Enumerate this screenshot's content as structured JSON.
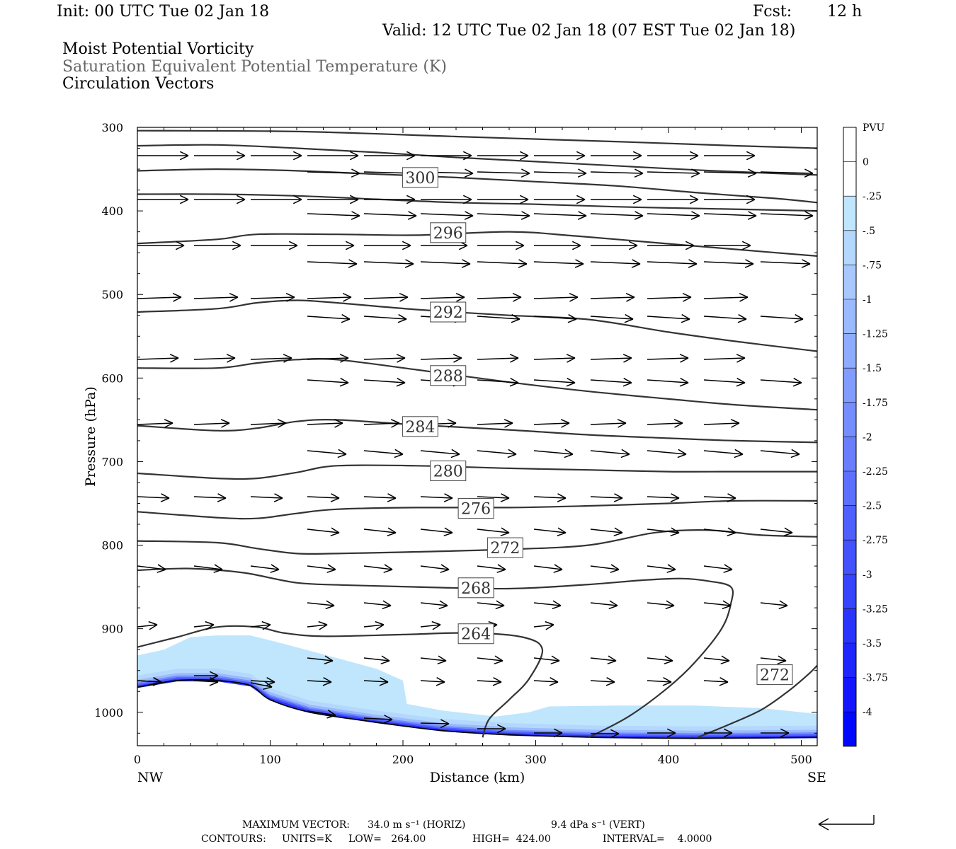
{
  "header": {
    "init": "Init: 00 UTC Tue 02 Jan 18",
    "fcst_label": "Fcst:",
    "fcst_value": "12 h",
    "valid": "Valid: 12 UTC Tue 02 Jan 18 (07 EST Tue 02 Jan 18)",
    "field1": "Moist Potential Vorticity",
    "field2": "Saturation Equivalent Potential Temperature (K)",
    "field3": "Circulation Vectors"
  },
  "chart_data": {
    "type": "cross-section",
    "xlabel": "Distance (km)",
    "ylabel": "Pressure (hPa)",
    "xlim": [
      0,
      512
    ],
    "ylim": [
      1040,
      300
    ],
    "x_ticks": [
      0,
      100,
      200,
      300,
      400,
      500
    ],
    "y_ticks": [
      300,
      400,
      500,
      600,
      700,
      800,
      900,
      1000
    ],
    "x_end_labels": {
      "left": "NW",
      "right": "SE"
    },
    "colorbar": {
      "title": "PVU",
      "labels": [
        "0",
        "-.25",
        "-.5",
        "-.75",
        "-1",
        "-1.25",
        "-1.5",
        "-1.75",
        "-2",
        "-2.25",
        "-2.5",
        "-2.75",
        "-3",
        "-3.25",
        "-3.5",
        "-3.75",
        "-4"
      ],
      "colors": [
        "#ffffff",
        "#bfe6fd",
        "#b4d8fd",
        "#a8c8fd",
        "#9bbafd",
        "#8fabfd",
        "#829cfd",
        "#768dfd",
        "#6a7efd",
        "#5d6ffd",
        "#5060fd",
        "#4452fd",
        "#3843fd",
        "#2b34fd",
        "#1f25fd",
        "#1316fd",
        "#0007fd"
      ]
    },
    "contours": [
      {
        "label": "300",
        "label_at": [
          213,
          360
        ],
        "points": [
          [
            0,
            352
          ],
          [
            60,
            350
          ],
          [
            120,
            352
          ],
          [
            180,
            356
          ],
          [
            240,
            360
          ],
          [
            300,
            365
          ],
          [
            360,
            370
          ],
          [
            420,
            378
          ],
          [
            480,
            385
          ],
          [
            512,
            390
          ]
        ]
      },
      {
        "label": "296",
        "label_at": [
          234,
          426
        ],
        "points": [
          [
            0,
            439
          ],
          [
            60,
            434
          ],
          [
            90,
            428
          ],
          [
            150,
            428
          ],
          [
            210,
            429
          ],
          [
            280,
            425
          ],
          [
            330,
            430
          ],
          [
            390,
            438
          ],
          [
            450,
            446
          ],
          [
            512,
            454
          ]
        ]
      },
      {
        "label": "292",
        "label_at": [
          234,
          521
        ],
        "points": [
          [
            0,
            521
          ],
          [
            60,
            517
          ],
          [
            90,
            510
          ],
          [
            120,
            507
          ],
          [
            150,
            510
          ],
          [
            210,
            518
          ],
          [
            280,
            525
          ],
          [
            340,
            530
          ],
          [
            400,
            545
          ],
          [
            450,
            556
          ],
          [
            512,
            568
          ]
        ]
      },
      {
        "label": "288",
        "label_at": [
          234,
          597
        ],
        "points": [
          [
            0,
            588
          ],
          [
            60,
            588
          ],
          [
            90,
            582
          ],
          [
            120,
            578
          ],
          [
            150,
            578
          ],
          [
            210,
            590
          ],
          [
            280,
            605
          ],
          [
            340,
            616
          ],
          [
            400,
            625
          ],
          [
            450,
            632
          ],
          [
            512,
            638
          ]
        ]
      },
      {
        "label": "284",
        "label_at": [
          213,
          658
        ],
        "points": [
          [
            0,
            657
          ],
          [
            60,
            663
          ],
          [
            90,
            660
          ],
          [
            120,
            652
          ],
          [
            150,
            650
          ],
          [
            210,
            656
          ],
          [
            280,
            662
          ],
          [
            340,
            668
          ],
          [
            400,
            672
          ],
          [
            450,
            675
          ],
          [
            512,
            677
          ]
        ]
      },
      {
        "label": "280",
        "label_at": [
          234,
          711
        ],
        "points": [
          [
            0,
            714
          ],
          [
            60,
            720
          ],
          [
            90,
            720
          ],
          [
            120,
            713
          ],
          [
            150,
            705
          ],
          [
            210,
            705
          ],
          [
            280,
            708
          ],
          [
            340,
            710
          ],
          [
            400,
            712
          ],
          [
            450,
            712
          ],
          [
            512,
            712
          ]
        ]
      },
      {
        "label": "276",
        "label_at": [
          255,
          756
        ],
        "points": [
          [
            0,
            760
          ],
          [
            60,
            767
          ],
          [
            90,
            768
          ],
          [
            120,
            762
          ],
          [
            150,
            757
          ],
          [
            210,
            755
          ],
          [
            280,
            755
          ],
          [
            340,
            753
          ],
          [
            400,
            750
          ],
          [
            450,
            747
          ],
          [
            512,
            747
          ]
        ]
      },
      {
        "label": "272",
        "label_at": [
          277,
          803
        ],
        "points": [
          [
            0,
            795
          ],
          [
            60,
            797
          ],
          [
            90,
            804
          ],
          [
            120,
            810
          ],
          [
            150,
            810
          ],
          [
            210,
            808
          ],
          [
            280,
            805
          ],
          [
            340,
            800
          ],
          [
            390,
            785
          ],
          [
            430,
            782
          ],
          [
            470,
            788
          ],
          [
            512,
            790
          ]
        ]
      },
      {
        "label": "268",
        "label_at": [
          255,
          851
        ],
        "points": [
          [
            0,
            830
          ],
          [
            40,
            828
          ],
          [
            80,
            833
          ],
          [
            120,
            845
          ],
          [
            160,
            848
          ],
          [
            210,
            850
          ],
          [
            280,
            852
          ],
          [
            340,
            847
          ],
          [
            380,
            842
          ],
          [
            410,
            840
          ],
          [
            430,
            843
          ],
          [
            447,
            850
          ],
          [
            447,
            870
          ],
          [
            440,
            900
          ],
          [
            420,
            940
          ],
          [
            400,
            970
          ],
          [
            370,
            1005
          ],
          [
            340,
            1030
          ]
        ]
      },
      {
        "label": "264",
        "label_at": [
          255,
          906
        ],
        "points": [
          [
            0,
            922
          ],
          [
            30,
            910
          ],
          [
            60,
            898
          ],
          [
            90,
            898
          ],
          [
            110,
            905
          ],
          [
            140,
            909
          ],
          [
            200,
            907
          ],
          [
            250,
            905
          ],
          [
            290,
            910
          ],
          [
            305,
            925
          ],
          [
            295,
            960
          ],
          [
            280,
            985
          ],
          [
            265,
            1008
          ],
          [
            260,
            1030
          ]
        ]
      },
      {
        "label": "272",
        "label_at": [
          480,
          955
        ],
        "points": [
          [
            422,
            1030
          ],
          [
            445,
            1015
          ],
          [
            470,
            997
          ],
          [
            490,
            975
          ],
          [
            505,
            955
          ],
          [
            512,
            944
          ]
        ]
      }
    ],
    "vector_legend": {
      "maximum_vector_label": "MAXIMUM VECTOR:",
      "horizontal": "34.0 m s⁻¹ (HORIZ)",
      "vertical": "9.4 dPa s⁻¹ (VERT)"
    },
    "contour_info": {
      "contours_label": "CONTOURS:",
      "units": "UNITS=K",
      "low": "LOW=   264.00",
      "high": "HIGH=  424.00",
      "interval": "INTERVAL=    4.0000"
    }
  }
}
